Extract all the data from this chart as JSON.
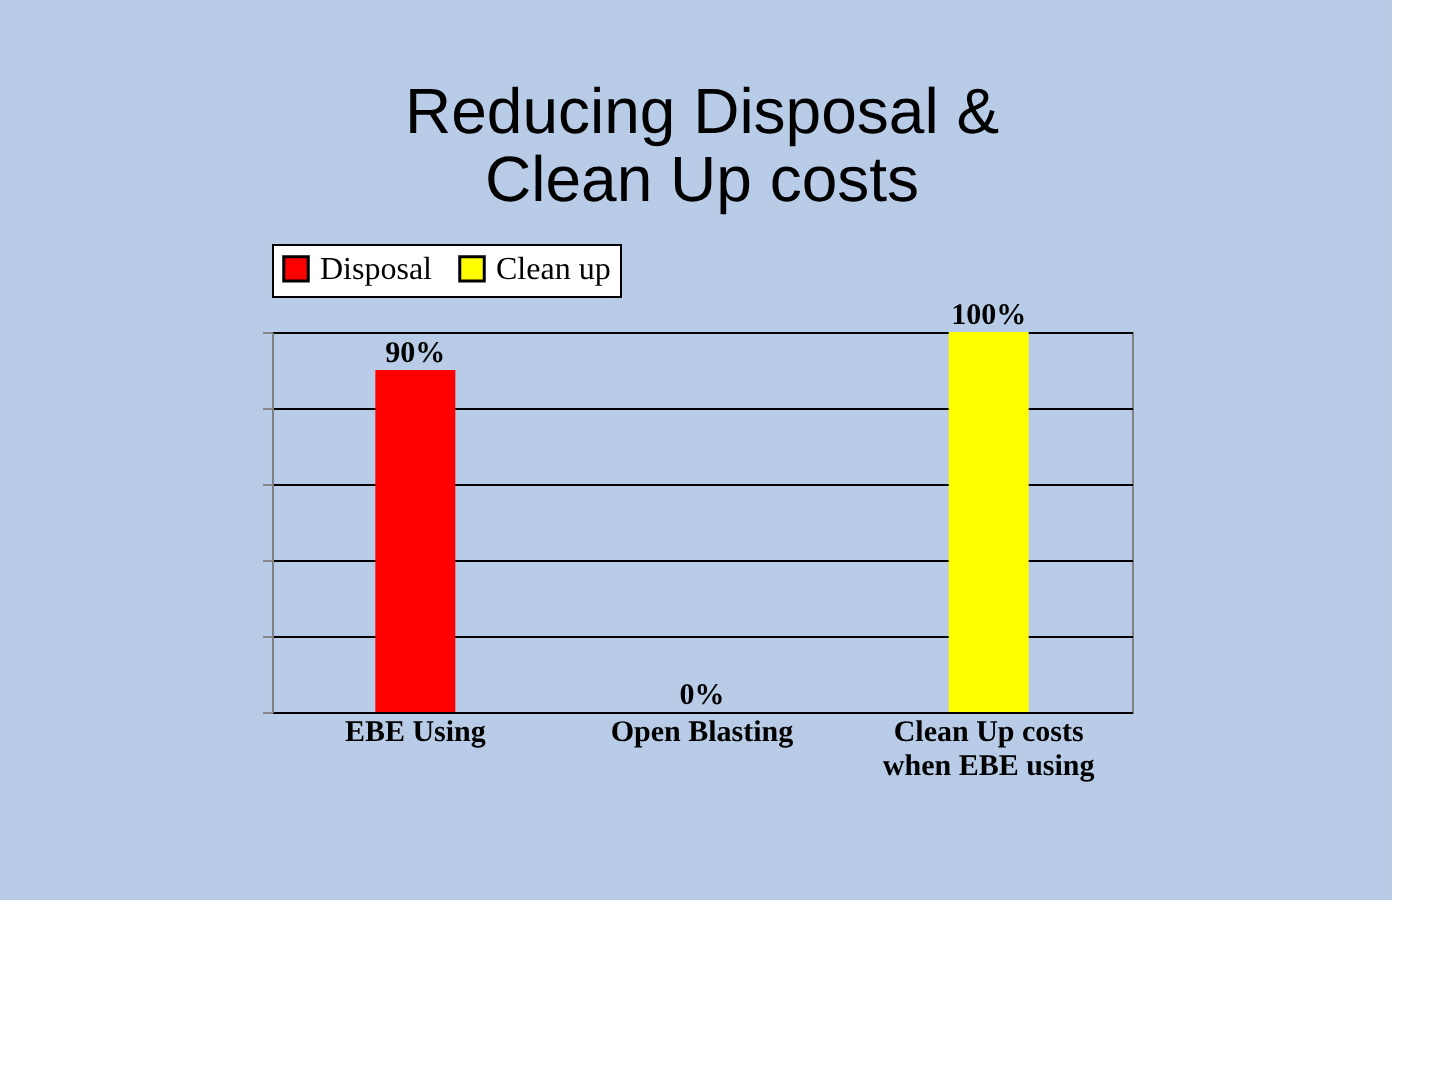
{
  "chart_data": {
    "type": "bar",
    "title": "Reducing Disposal &\nClean Up costs",
    "categories": [
      "EBE Using",
      "Open Blasting",
      "Clean Up costs when EBE using"
    ],
    "series": [
      {
        "name": "Disposal",
        "color": "#ff0000",
        "values": [
          90,
          0,
          null
        ],
        "value_labels": [
          "90%",
          "0%",
          null
        ]
      },
      {
        "name": "Clean up",
        "color": "#ffff00",
        "values": [
          null,
          null,
          100
        ],
        "value_labels": [
          null,
          null,
          "100%"
        ]
      }
    ],
    "relative": false,
    "ylim": [
      0,
      100
    ],
    "grid": "y",
    "legend": "top",
    "tick_labels": "x"
  }
}
